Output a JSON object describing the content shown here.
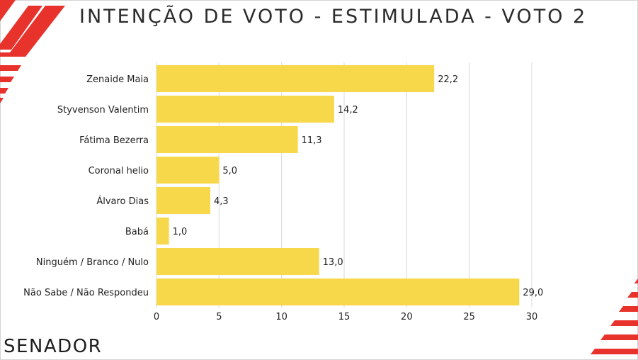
{
  "title": "INTENÇÃO DE VOTO - ESTIMULADA - VOTO 2",
  "footer": "SENADOR",
  "colors": {
    "bar": "#f8d84b",
    "accent": "#e8322c",
    "grid": "#d9d9d9",
    "text": "#1f1f1f"
  },
  "chart_data": {
    "type": "bar",
    "orientation": "horizontal",
    "categories": [
      "Zenaide Maia",
      "Styvenson Valentim",
      "Fátima Bezerra",
      "Coronal helio",
      "Álvaro Dias",
      "Babá",
      "Ninguém / Branco / Nulo",
      "Não Sabe / Não Respondeu"
    ],
    "values": [
      22.2,
      14.2,
      11.3,
      5.0,
      4.3,
      1.0,
      13.0,
      29.0
    ],
    "value_labels": [
      "22,2",
      "14,2",
      "11,3",
      "5,0",
      "4,3",
      "1,0",
      "13,0",
      "29,0"
    ],
    "xlim": [
      0,
      30
    ],
    "xticks": [
      0,
      5,
      10,
      15,
      20,
      25,
      30
    ],
    "grid": true,
    "legend": "none"
  }
}
